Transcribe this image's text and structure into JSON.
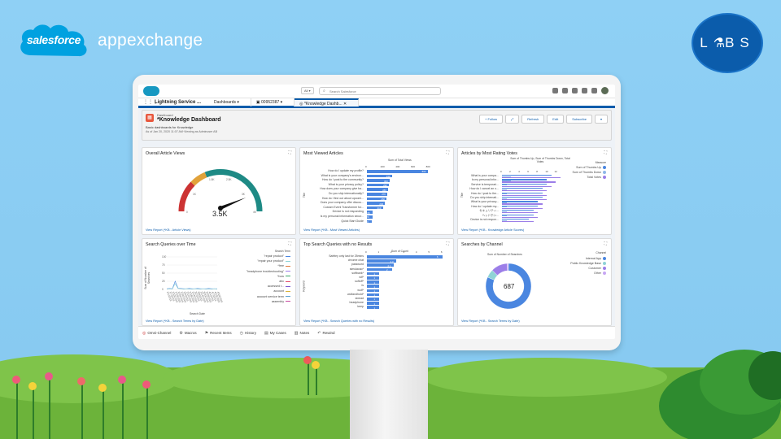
{
  "brand": {
    "salesforce": "salesforce",
    "appexchange": "appexchange",
    "labs": "L  B S",
    "labs_flask_icon": "flask-icon"
  },
  "header": {
    "scope": "All",
    "search_placeholder": "Search Salesforce"
  },
  "nav": {
    "app_name": "Lightning Service ...",
    "tabs": [
      {
        "label": "Dashboards"
      },
      {
        "label": "00952387"
      },
      {
        "label": "*Knowledge Dashb..."
      }
    ]
  },
  "dashboard": {
    "crumb": "Dashboard",
    "title": "*Knowledge Dashboard",
    "subtitle": "Basic dashboards for Knowledge",
    "meta": "As of Jan 20, 2020 11:07 AM·Viewing as Adminuser AB",
    "actions": [
      "Follow",
      "Refresh",
      "Edit",
      "Subscribe"
    ]
  },
  "panels": {
    "overall_views": {
      "title": "Overall Article Views",
      "value_label": "3.5K",
      "gauge": {
        "min": 0,
        "max": 4000,
        "value": 3500
      },
      "link": "View Report (*KB - Article Views)"
    },
    "most_viewed": {
      "title": "Most Viewed Articles",
      "link": "View Report (*KB - Most Viewed Articles)"
    },
    "rating_votes": {
      "title": "Articles by Most Rating Votes",
      "legend_title": "Measure",
      "legend": [
        "Sum of Thumbs Up",
        "Sum of Thumbs Down",
        "Total Votes"
      ],
      "link": "View Report (*KB - Knowledge Article Scores)"
    },
    "search_time": {
      "title": "Search Queries over Time",
      "legend_title": "Search Term",
      "legend": [
        "\"repair product\"",
        "\"repair your product\"",
        "*free",
        "\"headphone troubleshooting\"",
        "*how",
        "abc",
        "accessed t...",
        "account",
        "account service term",
        "assembly"
      ],
      "xlabel": "Search Date",
      "ylabel": "Sum of Number of Searches",
      "link": "View Report (*KB - Search Terms by Date)"
    },
    "no_results": {
      "title": "Top Search Queries with no Results",
      "link": "View Report (*KB - Search Queries with no Results)"
    },
    "by_channel": {
      "title": "Searches by Channel",
      "legend_title": "Channel",
      "legend": [
        "Internal App",
        "Public Knowledge Base",
        "Customer",
        "Other"
      ],
      "center_value": "687",
      "link": "View Report (*KB - Search Terms by Date)"
    }
  },
  "utility": {
    "items": [
      "Omni-Channel",
      "Macros",
      "Recent Items",
      "History",
      "My Cases",
      "Notes",
      "Rewind"
    ]
  },
  "chart_data": [
    {
      "type": "bar",
      "title": "Most Viewed Articles",
      "xlabel": "Sum of Total Views",
      "ylabel": "Title",
      "ticks": [
        "0",
        "200",
        "400",
        "600",
        "800"
      ],
      "categories": [
        "How do I update my profile?",
        "What is your company's environ...",
        "How do I post to the community?",
        "What is your privacy policy?",
        "How does your company give ba...",
        "Do you ship internationally?",
        "How do I find out about upcomi...",
        "Does your company offer discou...",
        "Custom Event Transformer for...",
        "Device is not responding",
        "Is my personal information secur...",
        "Quick Start Guide"
      ],
      "values": [
        800,
        330,
        300,
        290,
        280,
        270,
        260,
        240,
        210,
        80,
        70,
        60
      ],
      "xlim": [
        0,
        900
      ]
    },
    {
      "type": "bar",
      "title": "Articles by Most Rating Votes",
      "xlabel": "Sum of Thumbs Up, Sum of Thumbs Down, Total Votes",
      "ylabel": "Title",
      "ticks": [
        "0",
        "2",
        "4",
        "6",
        "8",
        "10",
        "12"
      ],
      "categories": [
        "What is your compa...",
        "Is my personal infor...",
        "Service is temporari...",
        "How do I cancel an o...",
        "How do I post to the...",
        "Do you ship internati...",
        "What is your privacy...",
        "How do I update my...",
        "セキュリティ...",
        "ヘッドホン...",
        "Device is not respon..."
      ],
      "series": [
        {
          "name": "Sum of Thumbs Up",
          "values": [
            11,
            10,
            10,
            9,
            9,
            9,
            8,
            8,
            7,
            7,
            6
          ]
        },
        {
          "name": "Sum of Thumbs Down",
          "values": [
            2,
            2,
            1,
            1,
            1,
            1,
            1,
            1,
            1,
            1,
            1
          ]
        },
        {
          "name": "Total Votes",
          "values": [
            13,
            12,
            11,
            10,
            10,
            10,
            9,
            9,
            8,
            8,
            7
          ]
        }
      ],
      "xlim": [
        0,
        13
      ]
    },
    {
      "type": "line",
      "title": "Search Queries over Time",
      "xlabel": "Search Date",
      "ylabel": "Sum of Number of Searches",
      "yticks": [
        "0",
        "25",
        "50",
        "75",
        "100"
      ],
      "categories": [
        "1/1/2019",
        "1/7/2019",
        "1/13/2019",
        "1/19/2019",
        "1/25/2019",
        "1/31/2019",
        "2/6/2019",
        "2/12/2019",
        "2/18/2019",
        "2/24/2019",
        "3/2/2019",
        "3/8/2019",
        "3/14/2019",
        "3/20/2019",
        "3/26/2019",
        "4/1/2019",
        "4/7/2019",
        "4/13/2019",
        "4/19/2019"
      ],
      "series": [
        {
          "name": "\"repair product\"",
          "values": [
            2,
            3,
            2,
            25,
            4,
            3,
            2,
            2,
            3,
            2,
            2,
            3,
            2,
            2,
            2,
            3,
            2,
            2,
            2
          ]
        },
        {
          "name": "\"repair your product\"",
          "values": [
            1,
            2,
            1,
            18,
            3,
            2,
            1,
            2,
            1,
            1,
            2,
            1,
            1,
            2,
            1,
            1,
            1,
            2,
            1
          ]
        }
      ],
      "ylim": [
        0,
        100
      ]
    },
    {
      "type": "bar",
      "title": "Top Search Queries with no Results",
      "xlabel": "Sum of Count",
      "ylabel": "Keyword",
      "ticks": [
        "0",
        "1",
        "2",
        "3",
        "4",
        "5",
        "6"
      ],
      "categories": [
        "Safeley only last for 25mins",
        "chrome chat",
        "password",
        "simulacao*",
        "softbank*",
        "wif*",
        "softoff*",
        "is",
        "wolf*",
        "wolfandhold*",
        "sinead",
        "headphone",
        "keep"
      ],
      "values": [
        6,
        2.3,
        2.1,
        2.0,
        1.0,
        1.0,
        1.0,
        1.0,
        1.0,
        1.0,
        1.0,
        1.0,
        1.0
      ],
      "xlim": [
        0,
        6.2
      ]
    },
    {
      "type": "pie",
      "title": "Searches by Channel",
      "xlabel": "Sum of Number of Searches",
      "categories": [
        "Internal App",
        "Public Knowledge Base",
        "Customer",
        "Other"
      ],
      "values": [
        560,
        40,
        80,
        7
      ],
      "total": 687
    }
  ],
  "colors": {
    "brand_blue": "#0b5cab",
    "bar_blue": "#4a86e0",
    "donut_main": "#4a86e0",
    "donut_b": "#8fd3d6",
    "donut_c": "#9c7ee8",
    "donut_d": "#c7a6f3"
  }
}
